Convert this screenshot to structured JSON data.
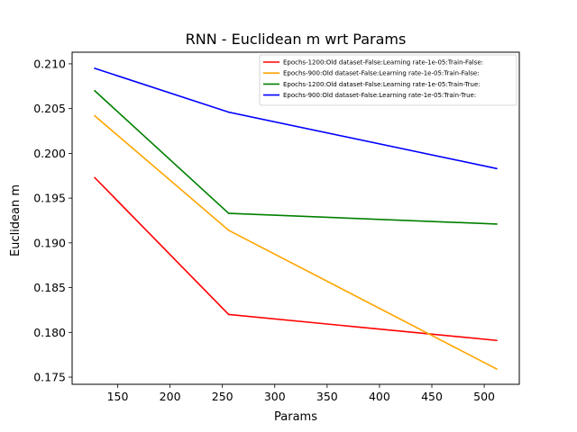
{
  "chart_data": {
    "type": "line",
    "title": "RNN - Euclidean m wrt Params",
    "xlabel": "Params",
    "ylabel": "Euclidean m",
    "xlim": [
      106.5,
      533.5
    ],
    "ylim": [
      0.1742,
      0.2113
    ],
    "xticks": [
      150,
      200,
      250,
      300,
      350,
      400,
      450,
      500
    ],
    "yticks": [
      0.175,
      0.18,
      0.185,
      0.19,
      0.195,
      0.2,
      0.205,
      0.21
    ],
    "xtick_labels": [
      "150",
      "200",
      "250",
      "300",
      "350",
      "400",
      "450",
      "500"
    ],
    "ytick_labels": [
      "0.175",
      "0.180",
      "0.185",
      "0.190",
      "0.195",
      "0.200",
      "0.205",
      "0.210"
    ],
    "grid": false,
    "legend_position": "top-right",
    "x": [
      128,
      256,
      512
    ],
    "series": [
      {
        "name": "Epochs-1200:Old dataset-False:Learning rate-1e-05:Train-False:",
        "color": "#ff0000",
        "values": [
          0.1973,
          0.182,
          0.1791
        ]
      },
      {
        "name": "Epochs-900:Old dataset-False:Learning rate-1e-05:Train-False:",
        "color": "#ffa500",
        "values": [
          0.2042,
          0.1914,
          0.1759
        ]
      },
      {
        "name": "Epochs-1200:Old dataset-False:Learning rate-1e-05:Train-True:",
        "color": "#008000",
        "values": [
          0.207,
          0.1933,
          0.1921
        ]
      },
      {
        "name": "Epochs-900:Old dataset-False:Learning rate-1e-05:Train-True:",
        "color": "#0000ff",
        "values": [
          0.2095,
          0.2046,
          0.1983
        ]
      }
    ]
  }
}
